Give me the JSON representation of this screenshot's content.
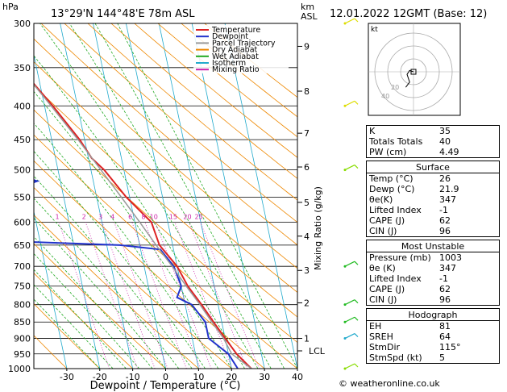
{
  "header": {
    "hpa": "hPa",
    "location": "13°29'N  144°48'E  78m  ASL",
    "km": "km",
    "asl": "ASL",
    "datetime": "12.01.2022  12GMT  (Base: 12)"
  },
  "footer": {
    "copyright": "© weatheronline.co.uk"
  },
  "legend": {
    "items": [
      {
        "label": "Temperature",
        "color": "#dd2222"
      },
      {
        "label": "Dewpoint",
        "color": "#2233cc"
      },
      {
        "label": "Parcel Trajectory",
        "color": "#999999"
      },
      {
        "label": "Dry Adiabat",
        "color": "#ee8800"
      },
      {
        "label": "Wet Adiabat",
        "color": "#22aa22"
      },
      {
        "label": "Isotherm",
        "color": "#22aacc"
      },
      {
        "label": "Mixing Ratio",
        "color": "#cc22aa"
      }
    ]
  },
  "hodograph": {
    "label": "kt",
    "rings": [
      "20",
      "40"
    ],
    "points": [
      [
        0,
        0
      ],
      [
        -3,
        1
      ],
      [
        -5,
        -2
      ],
      [
        -3,
        -8
      ],
      [
        -6,
        -12
      ]
    ]
  },
  "indices": {
    "general": [
      {
        "label": "K",
        "value": "35"
      },
      {
        "label": "Totals Totals",
        "value": "40"
      },
      {
        "label": "PW (cm)",
        "value": "4.49"
      }
    ],
    "surface": {
      "title": "Surface",
      "rows": [
        {
          "label": "Temp (°C)",
          "value": "26"
        },
        {
          "label": "Dewp (°C)",
          "value": "21.9"
        },
        {
          "label": "θe(K)",
          "value": "347"
        },
        {
          "label": "Lifted Index",
          "value": "-1"
        },
        {
          "label": "CAPE (J)",
          "value": "62"
        },
        {
          "label": "CIN (J)",
          "value": "96"
        }
      ]
    },
    "most_unstable": {
      "title": "Most Unstable",
      "rows": [
        {
          "label": "Pressure (mb)",
          "value": "1003"
        },
        {
          "label": "θe (K)",
          "value": "347"
        },
        {
          "label": "Lifted Index",
          "value": "-1"
        },
        {
          "label": "CAPE (J)",
          "value": "62"
        },
        {
          "label": "CIN (J)",
          "value": "96"
        }
      ]
    },
    "hodograph": {
      "title": "Hodograph",
      "rows": [
        {
          "label": "EH",
          "value": "81"
        },
        {
          "label": "SREH",
          "value": "64"
        },
        {
          "label": "StmDir",
          "value": "115°"
        },
        {
          "label": "StmSpd (kt)",
          "value": "5"
        }
      ]
    }
  },
  "chart_data": {
    "type": "line",
    "xlabel": "Dewpoint / Temperature (°C)",
    "ylabel": "Mixing Ratio (g/kg)",
    "y_unit": "hPa",
    "pressure_levels": [
      300,
      350,
      400,
      450,
      500,
      550,
      600,
      650,
      700,
      750,
      800,
      850,
      900,
      950,
      1000
    ],
    "x_ticks": [
      -30,
      -20,
      -10,
      0,
      10,
      20,
      30,
      40
    ],
    "xlim": [
      -40,
      40
    ],
    "ylim": [
      1000,
      300
    ],
    "skew_deg_per_log": true,
    "km_ticks": [
      {
        "km": "1",
        "p": 900
      },
      {
        "km": "2",
        "p": 795
      },
      {
        "km": "3",
        "p": 710
      },
      {
        "km": "4",
        "p": 630
      },
      {
        "km": "5",
        "p": 560
      },
      {
        "km": "6",
        "p": 495
      },
      {
        "km": "7",
        "p": 440
      },
      {
        "km": "8",
        "p": 380
      },
      {
        "km": "9",
        "p": 325
      }
    ],
    "lcl": {
      "label": "LCL",
      "p": 940
    },
    "mixing_ratios": [
      "1",
      "2",
      "3",
      "4",
      "6",
      "8",
      "10",
      "15",
      "20",
      "25"
    ],
    "mixing_ratio_values": [
      1,
      2,
      3,
      4,
      6,
      8,
      10,
      15,
      20,
      25
    ],
    "series": [
      {
        "name": "Temperature",
        "color": "#dd2222",
        "points": [
          [
            1000,
            26
          ],
          [
            950,
            22.5
          ],
          [
            900,
            20
          ],
          [
            850,
            17.5
          ],
          [
            800,
            15
          ],
          [
            750,
            12
          ],
          [
            700,
            10
          ],
          [
            650,
            6
          ],
          [
            600,
            5
          ],
          [
            550,
            -1
          ],
          [
            500,
            -6
          ],
          [
            480,
            -9
          ],
          [
            450,
            -11.5
          ],
          [
            400,
            -17.5
          ],
          [
            350,
            -25
          ],
          [
            320,
            -30
          ]
        ]
      },
      {
        "name": "Dewpoint",
        "color": "#2233cc",
        "points": [
          [
            1000,
            21.9
          ],
          [
            950,
            20
          ],
          [
            900,
            15
          ],
          [
            850,
            15
          ],
          [
            800,
            12
          ],
          [
            780,
            8
          ],
          [
            750,
            10
          ],
          [
            700,
            9
          ],
          [
            660,
            6
          ],
          [
            650,
            -6
          ],
          [
            640,
            -45
          ],
          [
            600,
            -43
          ],
          [
            550,
            -42
          ],
          [
            520,
            -27
          ],
          [
            500,
            -38
          ],
          [
            480,
            -30
          ],
          [
            460,
            -34
          ],
          [
            450,
            -29
          ],
          [
            440,
            -65
          ],
          [
            420,
            -69
          ],
          [
            400,
            -70
          ],
          [
            370,
            -72
          ],
          [
            350,
            -64
          ],
          [
            340,
            -72
          ],
          [
            310,
            -76
          ],
          [
            300,
            -76
          ]
        ]
      },
      {
        "name": "Parcel Trajectory",
        "color": "#999999",
        "points": [
          [
            1000,
            26
          ],
          [
            950,
            21
          ],
          [
            900,
            19.5
          ],
          [
            850,
            17
          ],
          [
            800,
            14.5
          ],
          [
            750,
            11.5
          ],
          [
            700,
            8.5
          ],
          [
            650,
            5
          ],
          [
            600,
            1.5
          ],
          [
            550,
            -2.5
          ],
          [
            500,
            -7
          ],
          [
            450,
            -12
          ],
          [
            400,
            -18
          ],
          [
            350,
            -25
          ],
          [
            300,
            -33
          ]
        ]
      }
    ],
    "wind_barbs": [
      {
        "p": 300,
        "color": "#dddd00"
      },
      {
        "p": 400,
        "color": "#dddd00"
      },
      {
        "p": 500,
        "color": "#88dd00"
      },
      {
        "p": 700,
        "color": "#22bb22"
      },
      {
        "p": 800,
        "color": "#22bb22"
      },
      {
        "p": 850,
        "color": "#22bb22"
      },
      {
        "p": 900,
        "color": "#22aacc"
      },
      {
        "p": 1000,
        "color": "#88dd00"
      }
    ]
  }
}
